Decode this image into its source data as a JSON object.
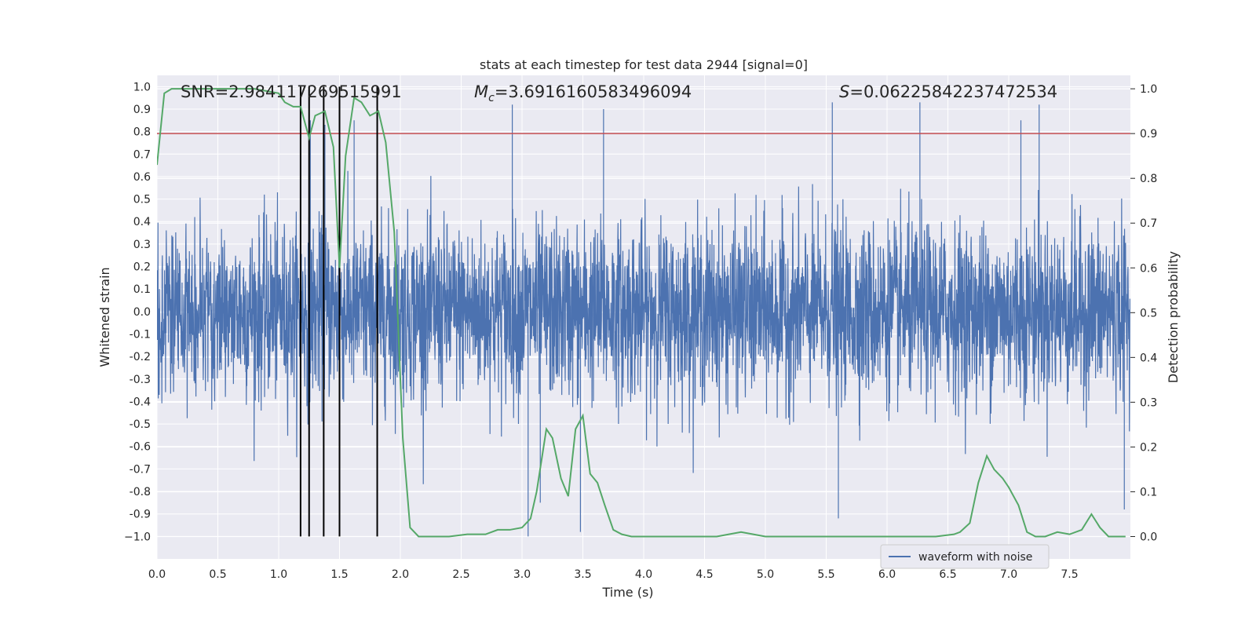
{
  "chart_data": {
    "type": "line",
    "title": "stats at each timestep for test data 2944 [signal=0]",
    "xlabel": "Time (s)",
    "ylabel_left": "Whitened strain",
    "ylabel_right": "Detection probability",
    "xlim": [
      0,
      8
    ],
    "ylim_left": [
      -1.1,
      1.05
    ],
    "ylim_right": [
      -0.05,
      1.03
    ],
    "x_ticks": [
      "0.0",
      "0.5",
      "1.0",
      "1.5",
      "2.0",
      "2.5",
      "3.0",
      "3.5",
      "4.0",
      "4.5",
      "5.0",
      "5.5",
      "6.0",
      "6.5",
      "7.0",
      "7.5"
    ],
    "y_left_ticks": [
      "1.0",
      "0.9",
      "0.8",
      "0.7",
      "0.6",
      "0.5",
      "0.4",
      "0.3",
      "0.2",
      "0.1",
      "0.0",
      "-0.1",
      "-0.2",
      "-0.3",
      "-0.4",
      "-0.5",
      "-0.6",
      "-0.7",
      "-0.8",
      "-0.9",
      "−1.0"
    ],
    "y_right_ticks": [
      "1.0",
      "0.9",
      "0.8",
      "0.7",
      "0.6",
      "0.5",
      "0.4",
      "0.3",
      "0.2",
      "0.1",
      "0.0"
    ],
    "grid": true,
    "legend_placement": "lower-right",
    "colors": {
      "plot_bg": "#eaeaf2",
      "grid": "#ffffff",
      "waveform": "#4c72b0",
      "probability": "#55a868",
      "threshold": "#c44e52",
      "markers": "#000000"
    },
    "annotations": {
      "snr": "SNR=2.984117269515991",
      "mc_symbol": "M",
      "mc_sub": "c",
      "mc_value": "=3.6916160583496094",
      "s_symbol": "S",
      "s_value": "=0.06225842237472534"
    },
    "series": [
      {
        "name": "waveform with noise",
        "axis": "left",
        "kind": "noise",
        "x_range": [
          0,
          8
        ],
        "typical_envelope": [
          -0.42,
          0.42
        ],
        "peak_extent": [
          -1.0,
          0.92
        ],
        "notable_peaks": [
          {
            "x": 1.26,
            "y": 0.85
          },
          {
            "x": 1.38,
            "y": 0.83
          },
          {
            "x": 1.62,
            "y": 0.85
          },
          {
            "x": 2.92,
            "y": 0.92
          },
          {
            "x": 3.05,
            "y": -1.0
          },
          {
            "x": 3.15,
            "y": -0.85
          },
          {
            "x": 3.48,
            "y": -0.98
          },
          {
            "x": 3.67,
            "y": 0.9
          },
          {
            "x": 5.55,
            "y": 0.93
          },
          {
            "x": 5.6,
            "y": -0.92
          },
          {
            "x": 6.27,
            "y": 0.93
          },
          {
            "x": 7.1,
            "y": 0.85
          },
          {
            "x": 7.25,
            "y": 0.92
          },
          {
            "x": 7.95,
            "y": -0.88
          }
        ]
      },
      {
        "axis": "right",
        "kind": "line",
        "x": [
          0.0,
          0.06,
          0.12,
          0.2,
          0.4,
          0.6,
          0.8,
          1.0,
          1.05,
          1.12,
          1.18,
          1.25,
          1.3,
          1.38,
          1.45,
          1.5,
          1.55,
          1.62,
          1.68,
          1.75,
          1.82,
          1.88,
          1.95,
          2.02,
          2.08,
          2.15,
          2.3,
          2.4,
          2.55,
          2.7,
          2.8,
          2.9,
          3.0,
          3.07,
          3.12,
          3.2,
          3.25,
          3.32,
          3.38,
          3.44,
          3.5,
          3.56,
          3.62,
          3.68,
          3.75,
          3.82,
          3.9,
          4.0,
          4.2,
          4.4,
          4.6,
          4.7,
          4.8,
          4.9,
          5.0,
          5.2,
          5.5,
          5.8,
          6.1,
          6.4,
          6.55,
          6.6,
          6.68,
          6.75,
          6.82,
          6.88,
          6.95,
          7.0,
          7.08,
          7.15,
          7.22,
          7.3,
          7.4,
          7.5,
          7.6,
          7.68,
          7.75,
          7.82,
          7.9,
          7.96
        ],
        "y": [
          0.83,
          0.99,
          1.0,
          1.0,
          1.0,
          1.0,
          1.0,
          0.99,
          0.97,
          0.96,
          0.96,
          0.89,
          0.94,
          0.95,
          0.87,
          0.6,
          0.85,
          0.98,
          0.97,
          0.94,
          0.95,
          0.88,
          0.68,
          0.22,
          0.02,
          0.0,
          0.0,
          0.0,
          0.005,
          0.005,
          0.015,
          0.015,
          0.02,
          0.04,
          0.1,
          0.24,
          0.22,
          0.13,
          0.09,
          0.24,
          0.27,
          0.14,
          0.12,
          0.07,
          0.015,
          0.005,
          0.0,
          0.0,
          0.0,
          0.0,
          0.0,
          0.005,
          0.01,
          0.005,
          0.0,
          0.0,
          0.0,
          0.0,
          0.0,
          0.0,
          0.005,
          0.01,
          0.03,
          0.12,
          0.18,
          0.15,
          0.13,
          0.11,
          0.07,
          0.01,
          0.0,
          0.0,
          0.01,
          0.005,
          0.015,
          0.05,
          0.02,
          0.0,
          0.0,
          0.0
        ]
      },
      {
        "axis": "right",
        "kind": "hline",
        "y": 0.9
      },
      {
        "axis": "left",
        "kind": "vlines",
        "x": [
          1.18,
          1.25,
          1.37,
          1.5,
          1.81
        ],
        "ymin": -1.0,
        "ymax": 1.0
      }
    ]
  }
}
